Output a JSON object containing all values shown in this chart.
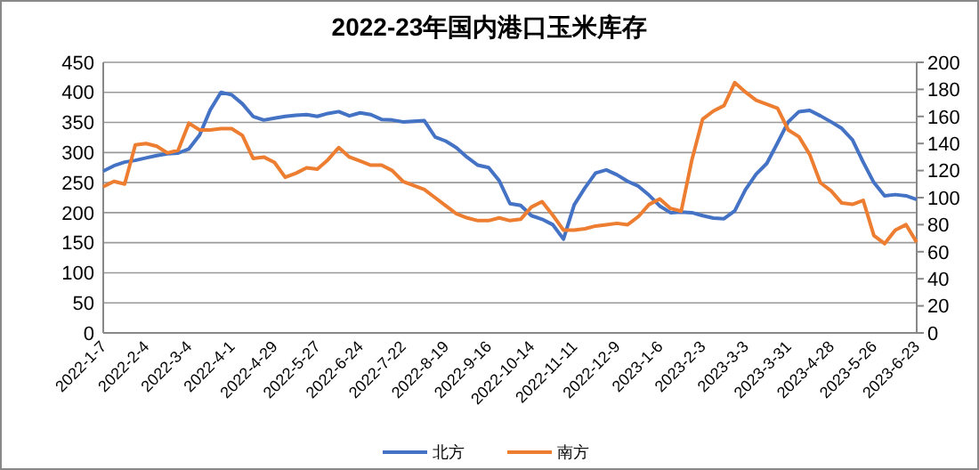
{
  "chart_data": {
    "type": "line",
    "title": "2022-23年国内港口玉米库存",
    "categories": [
      "2022-1-7",
      null,
      null,
      null,
      "2022-2-4",
      null,
      null,
      null,
      "2022-3-4",
      null,
      null,
      null,
      "2022-4-1",
      null,
      null,
      null,
      "2022-4-29",
      null,
      null,
      null,
      "2022-5-27",
      null,
      null,
      null,
      "2022-6-24",
      null,
      null,
      null,
      "2022-7-22",
      null,
      null,
      null,
      "2022-8-19",
      null,
      null,
      null,
      "2022-9-16",
      null,
      null,
      null,
      "2022-10-14",
      null,
      null,
      null,
      "2022-11-11",
      null,
      null,
      null,
      "2022-12-9",
      null,
      null,
      null,
      "2023-1-6",
      null,
      null,
      null,
      "2023-2-3",
      null,
      null,
      null,
      "2023-3-3",
      null,
      null,
      null,
      "2023-3-31",
      null,
      null,
      null,
      "2023-4-28",
      null,
      null,
      null,
      "2023-5-26",
      null,
      null,
      null,
      "2023-6-23"
    ],
    "series": [
      {
        "name": "北方",
        "color": "#4472c4",
        "values": [
          269,
          278,
          284,
          287,
          291,
          295,
          298,
          299,
          306,
          329,
          371,
          400,
          396,
          381,
          360,
          354,
          357,
          360,
          362,
          363,
          360,
          365,
          368,
          361,
          366,
          363,
          355,
          354,
          351,
          352,
          353,
          326,
          319,
          308,
          292,
          279,
          275,
          253,
          215,
          212,
          195,
          189,
          180,
          156,
          213,
          241,
          266,
          271,
          263,
          252,
          244,
          229,
          211,
          200,
          201,
          200,
          195,
          191,
          190,
          203,
          238,
          264,
          282,
          316,
          351,
          368,
          370,
          361,
          351,
          340,
          321,
          284,
          250,
          228,
          230,
          228,
          222
        ]
      },
      {
        "name": "南方",
        "color": "#ed7d31",
        "axis": "y2",
        "values": [
          108,
          112,
          110,
          139,
          140,
          138,
          133,
          135,
          155,
          150,
          150,
          151,
          151,
          146,
          129,
          130,
          126,
          115,
          118,
          122,
          121,
          128,
          137,
          130,
          127,
          124,
          124,
          120,
          112,
          109,
          106,
          100,
          94,
          88,
          85,
          83,
          83,
          85,
          83,
          84,
          93,
          97,
          87,
          76,
          76,
          77,
          79,
          80,
          81,
          80,
          86,
          95,
          99,
          92,
          90,
          128,
          158,
          164,
          168,
          185,
          178,
          172,
          169,
          166,
          150,
          145,
          132,
          111,
          105,
          96,
          95,
          98,
          72,
          66,
          76,
          80,
          67
        ]
      }
    ],
    "ylim": [
      0,
      450
    ],
    "yticks": [
      0,
      50,
      100,
      150,
      200,
      250,
      300,
      350,
      400,
      450
    ],
    "y2lim": [
      0,
      200
    ],
    "y2ticks": [
      0,
      20,
      40,
      60,
      80,
      100,
      120,
      140,
      160,
      180,
      200
    ],
    "grid": "y",
    "legend": "bottom",
    "line_style": "solid",
    "marker": "none"
  }
}
